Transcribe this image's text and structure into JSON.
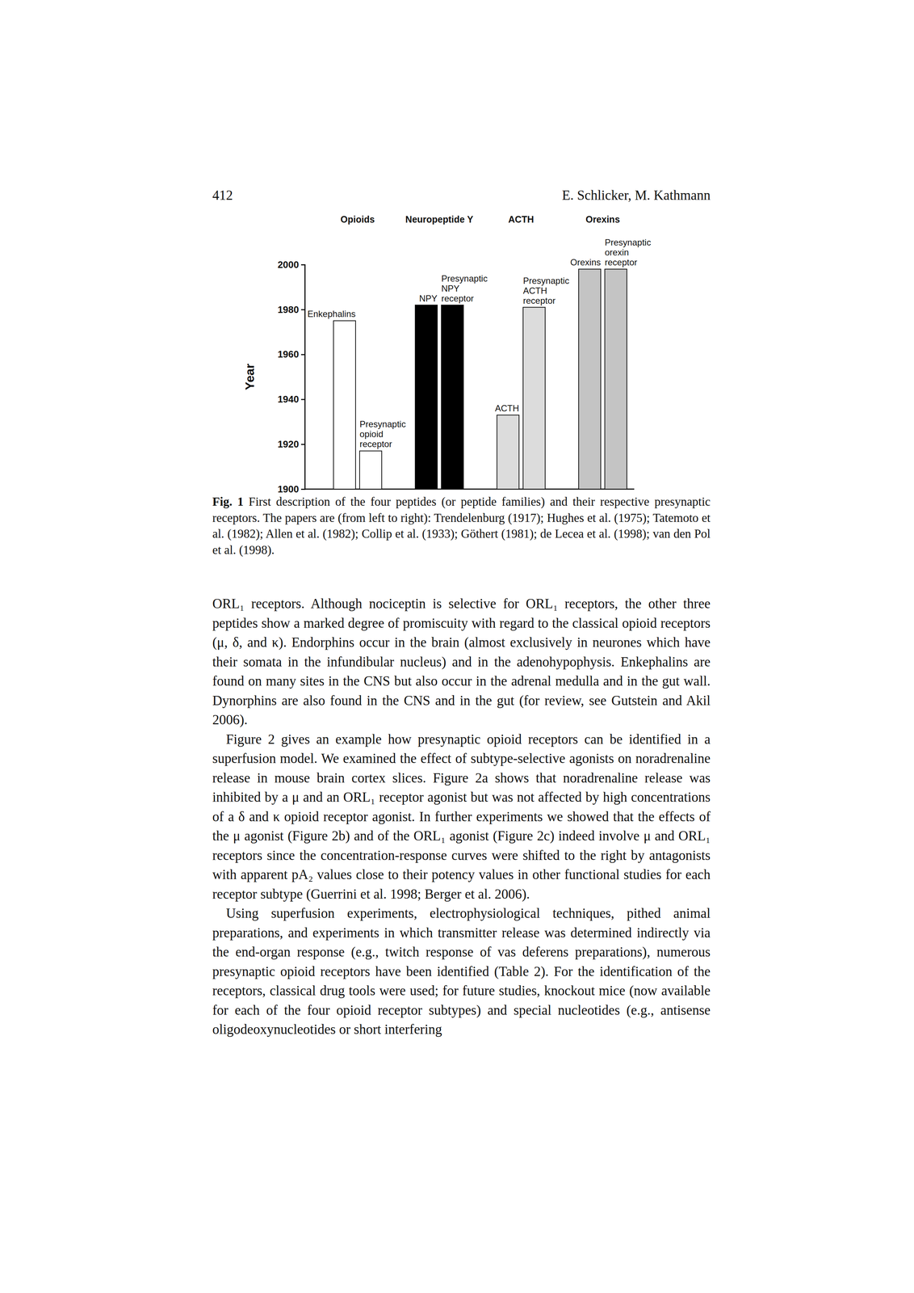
{
  "header": {
    "page_number": "412",
    "authors": "E. Schlicker, M. Kathmann"
  },
  "chart_data": {
    "type": "bar",
    "y_label": "Year",
    "annotations": [
      "Opioids",
      "Neuropeptide Y",
      "ACTH",
      "Orexins"
    ],
    "categories": [
      "Enkephalins",
      "Presynaptic opioid receptor",
      "NPY",
      "Presynaptic NPY receptor",
      "ACTH",
      "Presynaptic ACTH receptor",
      "Orexins",
      "Presynaptic orexin receptor"
    ],
    "values": [
      1975,
      1917,
      1982,
      1982,
      1933,
      1981,
      1998,
      1998
    ],
    "colors": [
      "#ffffff",
      "#ffffff",
      "#000000",
      "#000000",
      "#dcdcdc",
      "#dcdcdc",
      "#c4c4c4",
      "#c4c4c4"
    ],
    "ylim": [
      1900,
      2000
    ],
    "yticks": [
      1900,
      1920,
      1940,
      1960,
      1980,
      2000
    ],
    "tick_labels": "y"
  },
  "caption": {
    "label": "Fig. 1",
    "text": "First description of the four peptides (or peptide families) and their respective presynaptic receptors. The papers are (from left to right): Trendelenburg (1917); Hughes et al. (1975); Tatemoto et al. (1982); Allen et al. (1982); Collip et al. (1933); Göthert (1981); de Lecea et al. (1998); van den Pol et al. (1998)."
  },
  "paragraphs": [
    "ORL₁ receptors. Although nociceptin is selective for ORL₁ receptors, the other three peptides show a marked degree of promiscuity with regard to the classical opioid receptors (μ, δ, and κ). Endorphins occur in the brain (almost exclusively in neurones which have their somata in the infundibular nucleus) and in the adenohypophysis. Enkephalins are found on many sites in the CNS but also occur in the adrenal medulla and in the gut wall. Dynorphins are also found in the CNS and in the gut (for review, see Gutstein and Akil 2006).",
    "Figure 2 gives an example how presynaptic opioid receptors can be identified in a superfusion model. We examined the effect of subtype-selective agonists on noradrenaline release in mouse brain cortex slices. Figure 2a shows that noradrenaline release was inhibited by a μ and an ORL₁ receptor agonist but was not affected by high concentrations of a δ and κ opioid receptor agonist. In further experiments we showed that the effects of the μ agonist (Figure 2b) and of the ORL₁ agonist (Figure 2c) indeed involve μ and ORL₁ receptors since the concentration-response curves were shifted to the right by antagonists with apparent pA₂ values close to their potency values in other functional studies for each receptor subtype (Guerrini et al. 1998; Berger et al. 2006).",
    "Using superfusion experiments, electrophysiological techniques, pithed animal preparations, and experiments in which transmitter release was determined indirectly via the end-organ response (e.g., twitch response of vas deferens preparations), numerous presynaptic opioid receptors have been identified (Table 2). For the identification of the receptors, classical drug tools were used; for future studies, knockout mice (now available for each of the four opioid receptor subtypes) and special nucleotides (e.g., antisense oligodeoxynucleotides or short interfering"
  ]
}
